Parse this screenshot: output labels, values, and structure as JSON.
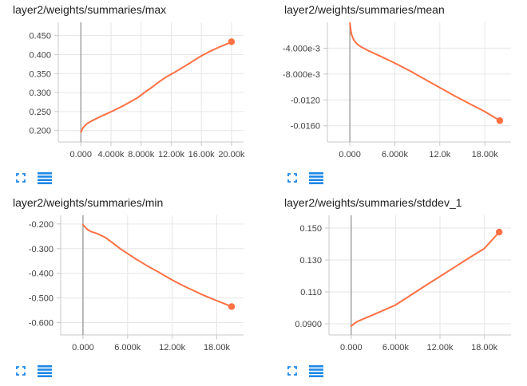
{
  "colors": {
    "line": "#ff7043",
    "dot": "#ff7043",
    "axis": "#c8c8c8",
    "grid": "#e6e6e6",
    "zero": "#9e9e9e",
    "icon": "#1e88e5"
  },
  "icons": {
    "expand": "expand-icon",
    "data": "list-icon"
  },
  "charts": [
    {
      "title": "layer2/weights/summaries/max",
      "xticks": [
        "0.000",
        "4.000k",
        "8.000k",
        "12.00k",
        "16.00k",
        "20.00k"
      ],
      "yticks": [
        "0.200",
        "0.250",
        "0.300",
        "0.350",
        "0.400",
        "0.450"
      ]
    },
    {
      "title": "layer2/weights/summaries/mean",
      "xticks": [
        "0.000",
        "6.000k",
        "12.0k",
        "18.00k"
      ],
      "yticks": [
        "-4.000e-3",
        "-8.000e-3",
        "-0.0120",
        "-0.0160"
      ]
    },
    {
      "title": "layer2/weights/summaries/min",
      "xticks": [
        "0.000",
        "6.000k",
        "12.00k",
        "18.00k"
      ],
      "yticks": [
        "-0.200",
        "-0.300",
        "-0.400",
        "-0.500",
        "-0.600"
      ]
    },
    {
      "title": "layer2/weights/summaries/stddev_1",
      "xticks": [
        "0.000",
        "6.000k",
        "12.00k",
        "18.00k"
      ],
      "yticks": [
        "0.150",
        "0.130",
        "0.110",
        "0.0900"
      ]
    }
  ],
  "chart_data": [
    {
      "type": "line",
      "title": "layer2/weights/summaries/max",
      "xlim": [
        -3000,
        21600
      ],
      "ylim": [
        0.17,
        0.485
      ],
      "xticks": [
        0,
        4000,
        8000,
        12000,
        16000,
        20000
      ],
      "yticks": [
        0.2,
        0.25,
        0.3,
        0.35,
        0.4,
        0.45
      ],
      "x": [
        0,
        300,
        800,
        1500,
        2500,
        3500,
        4500,
        5500,
        6500,
        7500,
        8500,
        9500,
        10500,
        11500,
        12500,
        13500,
        14500,
        15500,
        16500,
        17500,
        18500,
        19500,
        20000
      ],
      "y": [
        0.196,
        0.208,
        0.218,
        0.226,
        0.236,
        0.245,
        0.254,
        0.264,
        0.275,
        0.286,
        0.301,
        0.315,
        0.33,
        0.343,
        0.354,
        0.366,
        0.378,
        0.391,
        0.402,
        0.412,
        0.421,
        0.429,
        0.434
      ]
    },
    {
      "type": "line",
      "title": "layer2/weights/summaries/mean",
      "xlim": [
        -3000,
        21500
      ],
      "ylim": [
        -0.0185,
        0.0
      ],
      "xticks": [
        0,
        6000,
        12000,
        18000
      ],
      "yticks": [
        -0.004,
        -0.008,
        -0.012,
        -0.016
      ],
      "x": [
        0,
        200,
        500,
        1000,
        1500,
        2500,
        4000,
        6000,
        8000,
        10000,
        12000,
        14000,
        16000,
        18000,
        20000
      ],
      "y": [
        -0.0001,
        -0.0018,
        -0.0027,
        -0.0034,
        -0.0038,
        -0.0044,
        -0.0052,
        -0.0063,
        -0.0075,
        -0.0088,
        -0.0101,
        -0.0114,
        -0.0126,
        -0.0138,
        -0.0152
      ]
    },
    {
      "type": "line",
      "title": "layer2/weights/summaries/min",
      "xlim": [
        -3000,
        21600
      ],
      "ylim": [
        -0.65,
        -0.165
      ],
      "xticks": [
        0,
        6000,
        12000,
        18000
      ],
      "yticks": [
        -0.2,
        -0.3,
        -0.4,
        -0.5,
        -0.6
      ],
      "x": [
        0,
        500,
        1000,
        2000,
        3000,
        4000,
        5000,
        6000,
        7000,
        8000,
        9000,
        10000,
        11000,
        12000,
        13000,
        14000,
        15000,
        16000,
        17000,
        18000,
        19000,
        20000
      ],
      "y": [
        -0.203,
        -0.22,
        -0.23,
        -0.24,
        -0.255,
        -0.277,
        -0.3,
        -0.32,
        -0.34,
        -0.358,
        -0.376,
        -0.392,
        -0.41,
        -0.427,
        -0.443,
        -0.458,
        -0.472,
        -0.486,
        -0.499,
        -0.511,
        -0.523,
        -0.535
      ]
    },
    {
      "type": "line",
      "title": "layer2/weights/summaries/stddev_1",
      "xlim": [
        -3000,
        21600
      ],
      "ylim": [
        0.083,
        0.158
      ],
      "xticks": [
        0,
        6000,
        12000,
        18000
      ],
      "yticks": [
        0.15,
        0.13,
        0.11,
        0.09
      ],
      "x": [
        0,
        500,
        1000,
        2000,
        4000,
        6000,
        8000,
        10000,
        12000,
        14000,
        16000,
        18000,
        20000
      ],
      "y": [
        0.0885,
        0.0905,
        0.0918,
        0.0937,
        0.0977,
        0.1018,
        0.1078,
        0.1138,
        0.1197,
        0.1256,
        0.1315,
        0.1372,
        0.1475
      ]
    }
  ]
}
